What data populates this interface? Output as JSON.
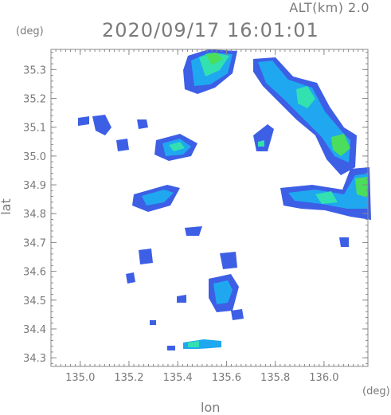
{
  "header": {
    "altitude": "ALT(km)  2.0",
    "datetime": "2020/09/17  16:01:01"
  },
  "axes": {
    "y_unit": "(deg)",
    "x_unit": "(deg)",
    "y_label": "lat",
    "x_label": "lon",
    "x_ticks": [
      "135.0",
      "135.2",
      "135.4",
      "135.6",
      "135.8",
      "136.0"
    ],
    "y_ticks": [
      "35.3",
      "35.2",
      "35.1",
      "35.0",
      "34.9",
      "34.8",
      "34.7",
      "34.6",
      "34.5",
      "34.4",
      "34.3"
    ],
    "x_range": [
      134.88,
      136.18
    ],
    "y_range": [
      34.27,
      35.37
    ]
  },
  "colors": {
    "frame": "#8a8a8a",
    "echo_low": "#3d5fe6",
    "echo_mid": "#1fa8f0",
    "echo_high": "#33e0b0",
    "echo_peak": "#4ade5c"
  }
}
